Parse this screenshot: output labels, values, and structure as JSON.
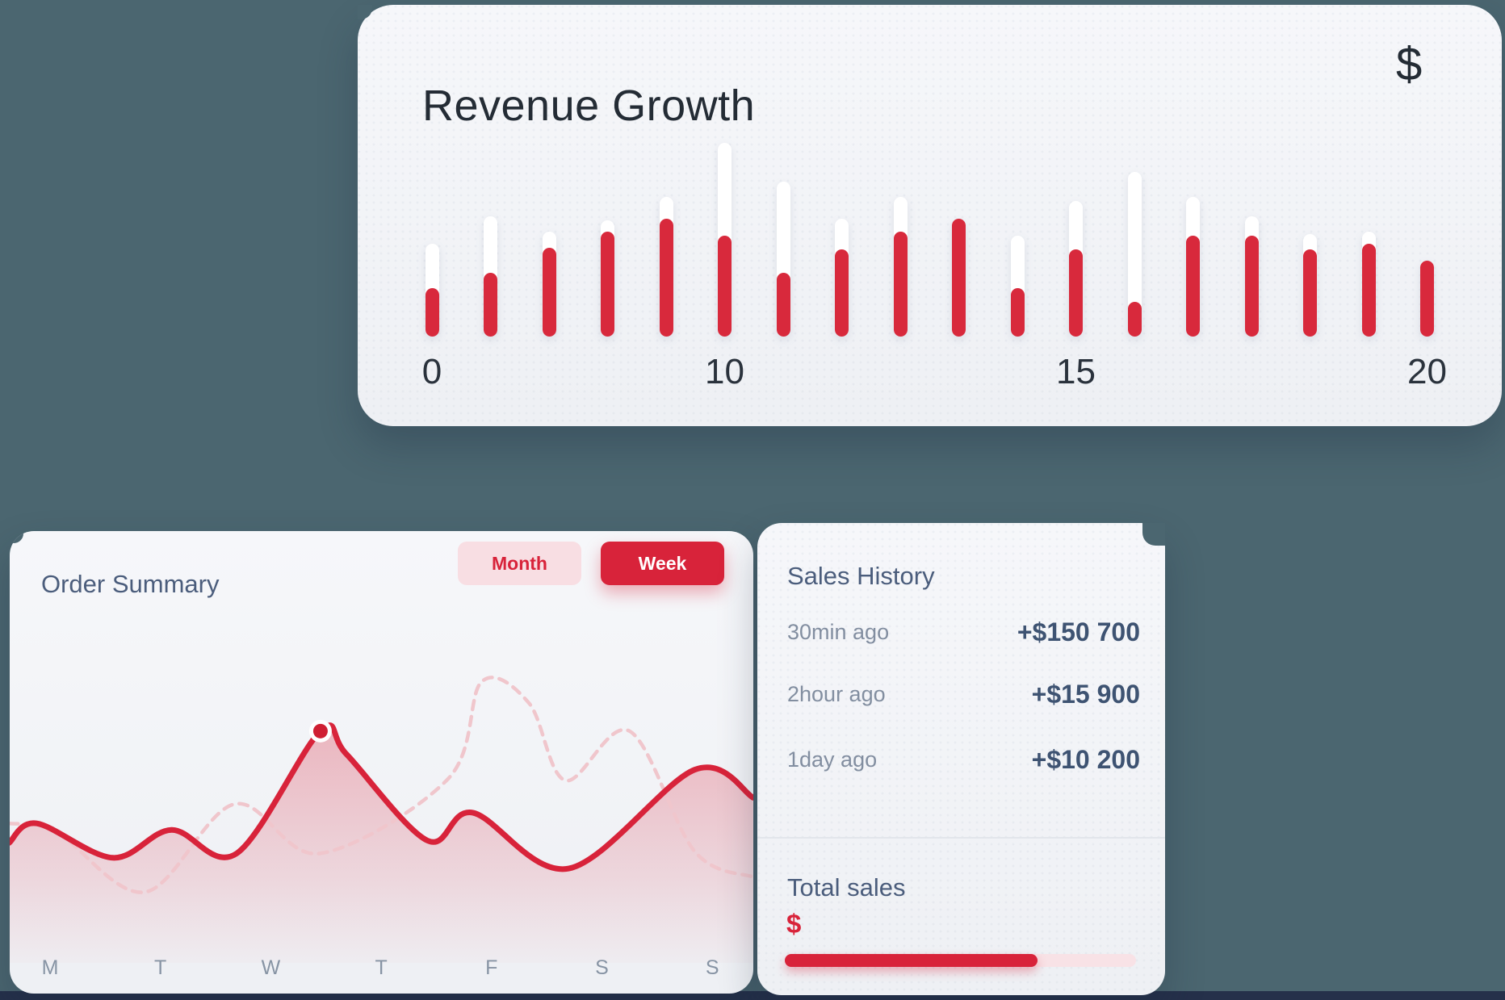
{
  "background": {
    "color": "#4b6670",
    "footer_color": "#25304a"
  },
  "colors": {
    "accent_red": "#d8233a",
    "bar_red": "#d8293c",
    "bar_track_white": "#ffffff",
    "pink_button_bg": "#f8dee3",
    "dashed_line_pink": "#f0c6cc",
    "heading_slate": "#4b5d7c",
    "value_slate": "#3e5372",
    "muted_gray": "#828ea0",
    "dark_text": "#242c35",
    "card_bg": "#f1f2f6"
  },
  "revenue_card": {
    "title": "Revenue Growth",
    "currency_icon": "$"
  },
  "order_card": {
    "title": "Order Summary",
    "toggle": {
      "month_label": "Month",
      "week_label": "Week",
      "active": "Week"
    },
    "weekdays": [
      "M",
      "T",
      "W",
      "T",
      "F",
      "S",
      "S"
    ]
  },
  "sales_card": {
    "title": "Sales History",
    "entries": [
      {
        "time": "30min ago",
        "amount": "+$150 700"
      },
      {
        "time": "2hour ago",
        "amount": "+$15 900"
      },
      {
        "time": "1day ago",
        "amount": "+$10 200"
      }
    ],
    "total": {
      "title": "Total sales",
      "currency_icon": "$",
      "progress_percent": 72
    }
  },
  "chart_data": [
    {
      "name": "revenue_growth",
      "type": "bar",
      "title": "Revenue Growth",
      "x_tick_labels": [
        {
          "label": "0",
          "bar_index": 0
        },
        {
          "label": "10",
          "bar_index": 5
        },
        {
          "label": "15",
          "bar_index": 11
        },
        {
          "label": "20",
          "bar_index": 17
        }
      ],
      "ylim": [
        0,
        100
      ],
      "grid": false,
      "series": [
        {
          "name": "target",
          "color": "#ffffff",
          "values": [
            48,
            62,
            54,
            60,
            72,
            100,
            80,
            61,
            72,
            61,
            52,
            70,
            85,
            72,
            62,
            53,
            54,
            39
          ]
        },
        {
          "name": "actual",
          "color": "#d8293c",
          "values": [
            25,
            33,
            46,
            54,
            61,
            52,
            33,
            45,
            54,
            61,
            25,
            45,
            18,
            52,
            52,
            45,
            48,
            39
          ]
        }
      ]
    },
    {
      "name": "order_summary",
      "type": "area",
      "title": "Order Summary",
      "categories": [
        "M",
        "T",
        "W",
        "T",
        "F",
        "S",
        "S"
      ],
      "ylim": [
        0,
        100
      ],
      "grid": false,
      "marker": {
        "series": "week",
        "x": 2.45,
        "value": 76
      },
      "series": [
        {
          "name": "week",
          "style": "solid",
          "color": "#d8233a",
          "fill": true,
          "points": [
            [
              -0.37,
              24
            ],
            [
              -0.12,
              33
            ],
            [
              0.57,
              17
            ],
            [
              1.1,
              30
            ],
            [
              1.69,
              19
            ],
            [
              2.45,
              76
            ],
            [
              2.69,
              65
            ],
            [
              3.42,
              25
            ],
            [
              3.83,
              38
            ],
            [
              4.7,
              12
            ],
            [
              5.84,
              58
            ],
            [
              6.37,
              45
            ]
          ]
        },
        {
          "name": "month",
          "style": "dashed",
          "color": "#f0c6cc",
          "fill": false,
          "points": [
            [
              -0.37,
              33
            ],
            [
              0.06,
              29
            ],
            [
              0.86,
              1
            ],
            [
              1.67,
              42
            ],
            [
              2.44,
              19
            ],
            [
              3.61,
              54
            ],
            [
              3.91,
              99
            ],
            [
              4.34,
              89
            ],
            [
              4.67,
              53
            ],
            [
              5.25,
              76
            ],
            [
              5.84,
              20
            ],
            [
              6.37,
              8
            ]
          ]
        }
      ]
    }
  ]
}
